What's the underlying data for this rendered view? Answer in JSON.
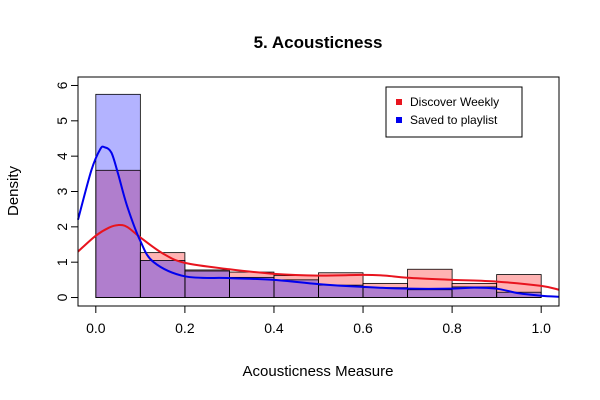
{
  "chart_data": {
    "type": "histogram-density",
    "title": "5. Acousticness",
    "xlabel": "Acousticness Measure",
    "ylabel": "Density",
    "xlim": [
      -0.04,
      1.04
    ],
    "ylim": [
      -0.24,
      6.24
    ],
    "x_ticks": [
      "0.0",
      "0.2",
      "0.4",
      "0.6",
      "0.8",
      "1.0"
    ],
    "y_ticks": [
      "0",
      "1",
      "2",
      "3",
      "4",
      "5",
      "6"
    ],
    "bins": [
      0.0,
      0.1,
      0.2,
      0.3,
      0.4,
      0.5,
      0.6,
      0.7,
      0.8,
      0.9,
      1.0
    ],
    "legend": {
      "position": "top-right"
    },
    "series": [
      {
        "name": "Discover Weekly",
        "color": "#e8141e",
        "fill": "#ffb3b3",
        "hist": [
          3.6,
          1.27,
          0.78,
          0.72,
          0.62,
          0.7,
          0.4,
          0.8,
          0.4,
          0.65
        ],
        "density_x": [
          -0.04,
          0.0,
          0.03,
          0.05,
          0.07,
          0.1,
          0.15,
          0.2,
          0.3,
          0.4,
          0.5,
          0.6,
          0.65,
          0.7,
          0.8,
          0.9,
          1.0,
          1.04
        ],
        "density_y": [
          1.3,
          1.75,
          1.98,
          2.05,
          2.0,
          1.7,
          1.25,
          0.98,
          0.8,
          0.67,
          0.62,
          0.64,
          0.62,
          0.56,
          0.5,
          0.45,
          0.33,
          0.22
        ]
      },
      {
        "name": "Saved to playlist",
        "color": "#0000ee",
        "fill": "#b3b3ff",
        "hist": [
          5.75,
          1.05,
          0.75,
          0.57,
          0.5,
          0.35,
          0.28,
          0.22,
          0.3,
          0.15
        ],
        "density_x": [
          -0.04,
          -0.01,
          0.01,
          0.02,
          0.035,
          0.05,
          0.07,
          0.1,
          0.13,
          0.2,
          0.3,
          0.4,
          0.5,
          0.6,
          0.7,
          0.8,
          0.85,
          0.9,
          0.95,
          1.0,
          1.04
        ],
        "density_y": [
          2.2,
          3.6,
          4.2,
          4.25,
          4.1,
          3.5,
          2.6,
          1.6,
          1.0,
          0.6,
          0.55,
          0.5,
          0.38,
          0.3,
          0.25,
          0.25,
          0.28,
          0.25,
          0.12,
          0.05,
          0.02
        ]
      }
    ]
  }
}
